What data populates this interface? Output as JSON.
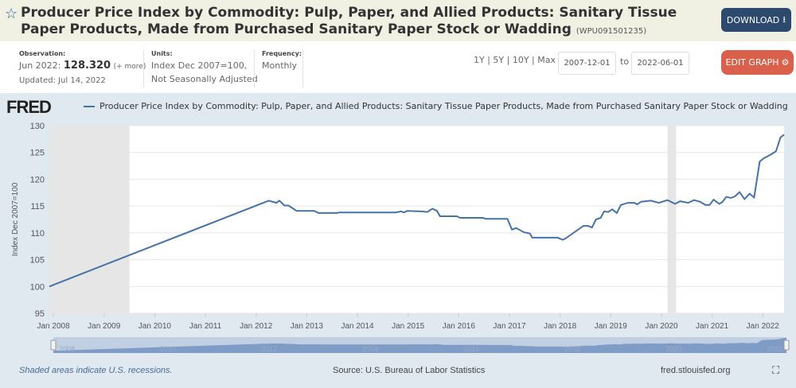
{
  "header": {
    "title": "Producer Price Index by Commodity: Pulp, Paper, and Allied Products: Sanitary Tissue Paper Products, Made from Purchased Sanitary Paper Stock or Wadding",
    "series_id": "(WPU091501235)",
    "download_label": "DOWNLOAD"
  },
  "meta": {
    "observation_label": "Observation:",
    "observation_date": "Jun 2022:",
    "observation_value": "128.320",
    "more": "(+ more)",
    "updated": "Updated: Jul 14, 2022",
    "units_label": "Units:",
    "units_1": "Index Dec 2007=100,",
    "units_2": "Not Seasonally Adjusted",
    "frequency_label": "Frequency:",
    "frequency": "Monthly"
  },
  "controls": {
    "ranges": [
      "1Y",
      "5Y",
      "10Y",
      "Max"
    ],
    "start_date": "2007-12-01",
    "to": "to",
    "end_date": "2022-06-01",
    "edit_label": "EDIT GRAPH"
  },
  "logo": "FRED",
  "footer": {
    "recession_note": "Shaded areas indicate U.S. recessions.",
    "source": "Source: U.S. Bureau of Labor Statistics",
    "site": "fred.stlouisfed.org"
  },
  "colors": {
    "line": "#4572a7",
    "recession": "#e6e6e6",
    "edit": "#d9604a",
    "download": "#2d4a6e"
  },
  "chart_data": {
    "type": "line",
    "title": "Producer Price Index by Commodity: Pulp, Paper, and Allied Products: Sanitary Tissue Paper Products, Made from Purchased Sanitary Paper Stock or Wadding",
    "ylabel": "Index Dec 2007=100",
    "xlabel": "",
    "ylim": [
      95,
      130
    ],
    "xlim": [
      2007.92,
      2022.42
    ],
    "yticks": [
      95,
      100,
      105,
      110,
      115,
      120,
      125,
      130
    ],
    "xticks": [
      {
        "v": 2008,
        "label": "Jan 2008"
      },
      {
        "v": 2009,
        "label": "Jan 2009"
      },
      {
        "v": 2010,
        "label": "Jan 2010"
      },
      {
        "v": 2011,
        "label": "Jan 2011"
      },
      {
        "v": 2012,
        "label": "Jan 2012"
      },
      {
        "v": 2013,
        "label": "Jan 2013"
      },
      {
        "v": 2014,
        "label": "Jan 2014"
      },
      {
        "v": 2015,
        "label": "Jan 2015"
      },
      {
        "v": 2016,
        "label": "Jan 2016"
      },
      {
        "v": 2017,
        "label": "Jan 2017"
      },
      {
        "v": 2018,
        "label": "Jan 2018"
      },
      {
        "v": 2019,
        "label": "Jan 2019"
      },
      {
        "v": 2020,
        "label": "Jan 2020"
      },
      {
        "v": 2021,
        "label": "Jan 2021"
      },
      {
        "v": 2022,
        "label": "Jan 2022"
      }
    ],
    "navigator_labels": [
      "2008",
      "2010",
      "2012",
      "2014",
      "2016",
      "2018",
      "2020",
      "2022"
    ],
    "recessions": [
      [
        2007.92,
        2009.5
      ],
      [
        2020.12,
        2020.29
      ]
    ],
    "grid": true,
    "legend": "top-left",
    "series": [
      {
        "name": "WPU091501235",
        "points": [
          [
            2007.92,
            100.0
          ],
          [
            2012.25,
            116.0
          ],
          [
            2012.4,
            115.6
          ],
          [
            2012.46,
            116.0
          ],
          [
            2012.56,
            115.1
          ],
          [
            2012.64,
            115.1
          ],
          [
            2012.8,
            114.1
          ],
          [
            2013.15,
            114.1
          ],
          [
            2013.23,
            113.7
          ],
          [
            2013.6,
            113.7
          ],
          [
            2013.64,
            113.8
          ],
          [
            2014.75,
            113.8
          ],
          [
            2014.86,
            114.0
          ],
          [
            2014.92,
            113.8
          ],
          [
            2014.98,
            114.1
          ],
          [
            2015.27,
            114.0
          ],
          [
            2015.38,
            113.9
          ],
          [
            2015.48,
            114.5
          ],
          [
            2015.57,
            114.1
          ],
          [
            2015.63,
            113.1
          ],
          [
            2015.96,
            113.1
          ],
          [
            2016.03,
            112.8
          ],
          [
            2016.48,
            112.8
          ],
          [
            2016.53,
            112.6
          ],
          [
            2016.96,
            112.6
          ],
          [
            2017.05,
            110.6
          ],
          [
            2017.13,
            110.9
          ],
          [
            2017.29,
            110.1
          ],
          [
            2017.4,
            109.9
          ],
          [
            2017.45,
            109.1
          ],
          [
            2017.95,
            109.1
          ],
          [
            2018.05,
            108.7
          ],
          [
            2018.1,
            108.9
          ],
          [
            2018.46,
            111.3
          ],
          [
            2018.55,
            111.3
          ],
          [
            2018.63,
            111.0
          ],
          [
            2018.71,
            112.5
          ],
          [
            2018.8,
            112.8
          ],
          [
            2018.87,
            114.0
          ],
          [
            2018.95,
            113.9
          ],
          [
            2019.03,
            114.4
          ],
          [
            2019.12,
            113.7
          ],
          [
            2019.2,
            115.2
          ],
          [
            2019.34,
            115.6
          ],
          [
            2019.47,
            115.6
          ],
          [
            2019.52,
            115.3
          ],
          [
            2019.6,
            115.8
          ],
          [
            2019.79,
            116.0
          ],
          [
            2019.95,
            115.6
          ],
          [
            2020.12,
            116.1
          ],
          [
            2020.27,
            115.4
          ],
          [
            2020.37,
            115.9
          ],
          [
            2020.53,
            115.6
          ],
          [
            2020.64,
            116.1
          ],
          [
            2020.76,
            115.8
          ],
          [
            2020.87,
            115.2
          ],
          [
            2020.95,
            115.2
          ],
          [
            2021.03,
            116.2
          ],
          [
            2021.14,
            115.4
          ],
          [
            2021.2,
            115.7
          ],
          [
            2021.28,
            116.7
          ],
          [
            2021.37,
            116.5
          ],
          [
            2021.45,
            116.8
          ],
          [
            2021.54,
            117.6
          ],
          [
            2021.64,
            116.3
          ],
          [
            2021.74,
            117.3
          ],
          [
            2021.83,
            116.6
          ],
          [
            2021.94,
            123.3
          ],
          [
            2022.02,
            123.9
          ],
          [
            2022.16,
            124.6
          ],
          [
            2022.26,
            125.2
          ],
          [
            2022.35,
            127.8
          ],
          [
            2022.42,
            128.32
          ]
        ]
      }
    ]
  }
}
